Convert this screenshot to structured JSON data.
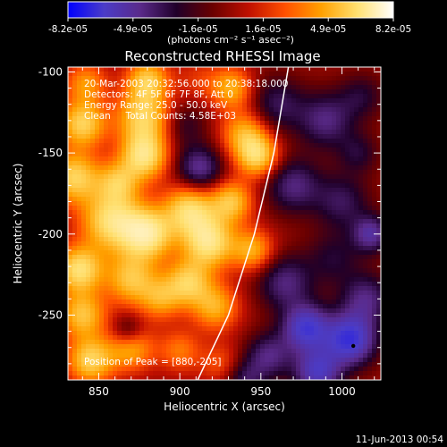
{
  "chart_data": {
    "type": "heatmap",
    "title": "Reconstructed RHESSI Image",
    "xlabel": "Heliocentric X (arcsec)",
    "ylabel": "Heliocentric Y (arcsec)",
    "xlim": [
      831,
      1024
    ],
    "ylim": [
      -290,
      -97
    ],
    "x_ticks": [
      850,
      900,
      950,
      1000
    ],
    "x_tick_labels": [
      "850",
      "900",
      "950",
      "1000"
    ],
    "y_ticks": [
      -250,
      -200,
      -150,
      -100
    ],
    "y_tick_labels": [
      "-250",
      "-200",
      "-150",
      "-100"
    ],
    "colorbar": {
      "min": -8.2e-05,
      "max": 8.2e-05,
      "tick_labels": [
        "-8.2e-05",
        "-4.9e-05",
        "-1.6e-05",
        "1.6e-05",
        "4.9e-05",
        "8.2e-05"
      ],
      "units_label": "(photons cm⁻² s⁻¹ asec⁻²)",
      "colormap": [
        "#0000ff",
        "#4b3cc8",
        "#5a2a8a",
        "#20002a",
        "#6a0000",
        "#c01000",
        "#ff5000",
        "#ffa000",
        "#ffe070",
        "#ffffff"
      ]
    },
    "annotations": [
      "20-Mar-2003 20:32:56.000 to 20:38:18.000",
      "Detectors: 4F 5F 6F 7F 8F, Att 0",
      "Energy Range: 25.0 - 50.0 keV",
      "Clean     Total Counts: 4.58E+03"
    ],
    "peak_label": "Position of Peak = [880,-205]",
    "peak_marker": [
      1007,
      -269
    ],
    "limb": [
      [
        911,
        -290
      ],
      [
        930,
        -250
      ],
      [
        946,
        -200
      ],
      [
        958,
        -150
      ],
      [
        967,
        -97
      ]
    ],
    "blobs": [
      {
        "x": 842,
        "y": -107,
        "v": 0.5,
        "s": 9
      },
      {
        "x": 880,
        "y": -105,
        "v": 0.7,
        "s": 9
      },
      {
        "x": 912,
        "y": -105,
        "v": 0.2,
        "s": 10
      },
      {
        "x": 932,
        "y": -110,
        "v": 0.6,
        "s": 9
      },
      {
        "x": 840,
        "y": -132,
        "v": 0.8,
        "s": 10
      },
      {
        "x": 878,
        "y": -128,
        "v": 0.8,
        "s": 12
      },
      {
        "x": 902,
        "y": -132,
        "v": -0.3,
        "s": 10
      },
      {
        "x": 912,
        "y": -160,
        "v": -0.6,
        "s": 10
      },
      {
        "x": 940,
        "y": -138,
        "v": 0.6,
        "s": 10
      },
      {
        "x": 948,
        "y": -152,
        "v": 0.8,
        "s": 9
      },
      {
        "x": 835,
        "y": -165,
        "v": 0.8,
        "s": 11
      },
      {
        "x": 862,
        "y": -168,
        "v": 0.6,
        "s": 9
      },
      {
        "x": 878,
        "y": -152,
        "v": 0.9,
        "s": 10
      },
      {
        "x": 932,
        "y": -180,
        "v": 0.7,
        "s": 9
      },
      {
        "x": 858,
        "y": -192,
        "v": 0.9,
        "s": 13
      },
      {
        "x": 880,
        "y": -200,
        "v": 1.0,
        "s": 11
      },
      {
        "x": 906,
        "y": -185,
        "v": 0.85,
        "s": 11
      },
      {
        "x": 918,
        "y": -205,
        "v": 0.95,
        "s": 11
      },
      {
        "x": 945,
        "y": -210,
        "v": 0.6,
        "s": 9
      },
      {
        "x": 838,
        "y": -222,
        "v": 0.9,
        "s": 10
      },
      {
        "x": 840,
        "y": -250,
        "v": 0.7,
        "s": 10
      },
      {
        "x": 870,
        "y": -228,
        "v": 0.7,
        "s": 11
      },
      {
        "x": 888,
        "y": -240,
        "v": 0.5,
        "s": 9
      },
      {
        "x": 905,
        "y": -230,
        "v": 0.75,
        "s": 10
      },
      {
        "x": 922,
        "y": -245,
        "v": 0.6,
        "s": 10
      },
      {
        "x": 845,
        "y": -278,
        "v": 0.8,
        "s": 10
      },
      {
        "x": 870,
        "y": -270,
        "v": 0.6,
        "s": 10
      },
      {
        "x": 900,
        "y": -272,
        "v": 0.4,
        "s": 9
      },
      {
        "x": 925,
        "y": -280,
        "v": 0.3,
        "s": 9
      },
      {
        "x": 868,
        "y": -260,
        "v": -0.4,
        "s": 7
      },
      {
        "x": 960,
        "y": -120,
        "v": -0.4,
        "s": 12
      },
      {
        "x": 990,
        "y": -130,
        "v": -0.5,
        "s": 12
      },
      {
        "x": 1012,
        "y": -115,
        "v": -0.3,
        "s": 10
      },
      {
        "x": 970,
        "y": -170,
        "v": -0.5,
        "s": 12
      },
      {
        "x": 1000,
        "y": -180,
        "v": -0.4,
        "s": 12
      },
      {
        "x": 965,
        "y": -230,
        "v": -0.5,
        "s": 12
      },
      {
        "x": 995,
        "y": -215,
        "v": -0.3,
        "s": 12
      },
      {
        "x": 1015,
        "y": -240,
        "v": -0.5,
        "s": 11
      },
      {
        "x": 978,
        "y": -258,
        "v": -0.9,
        "s": 10
      },
      {
        "x": 1005,
        "y": -265,
        "v": -1.0,
        "s": 11
      },
      {
        "x": 985,
        "y": -285,
        "v": -0.8,
        "s": 10
      },
      {
        "x": 955,
        "y": -275,
        "v": -0.5,
        "s": 10
      },
      {
        "x": 940,
        "y": -290,
        "v": -0.4,
        "s": 9
      },
      {
        "x": 1018,
        "y": -200,
        "v": -0.6,
        "s": 8
      },
      {
        "x": 1010,
        "y": -150,
        "v": -0.3,
        "s": 9
      }
    ]
  },
  "footer": {
    "timestamp": "11-Jun-2013 00:54"
  }
}
